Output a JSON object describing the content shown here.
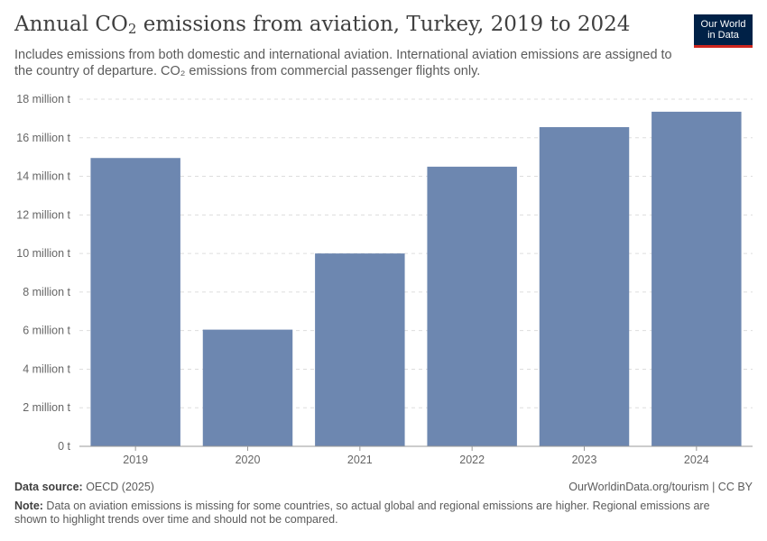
{
  "header": {
    "title_prefix": "Annual CO",
    "title_sub": "2",
    "title_suffix": " emissions from aviation, Turkey, 2019 to 2024",
    "subtitle": "Includes emissions from both domestic and international aviation. International aviation emissions are assigned to the country of departure. CO₂ emissions from commercial passenger flights only."
  },
  "logo": {
    "line1": "Our World",
    "line2": "in Data"
  },
  "chart_data": {
    "type": "bar",
    "title": "Annual CO₂ emissions from aviation, Turkey, 2019 to 2024",
    "xlabel": "",
    "ylabel": "",
    "categories": [
      "2019",
      "2020",
      "2021",
      "2022",
      "2023",
      "2024"
    ],
    "values": [
      14950000,
      6050000,
      10000000,
      14500000,
      16550000,
      17350000
    ],
    "ylim": [
      0,
      18000000
    ],
    "yticks": [
      0,
      2000000,
      4000000,
      6000000,
      8000000,
      10000000,
      12000000,
      14000000,
      16000000,
      18000000
    ],
    "ytick_labels": [
      "0 t",
      "2 million t",
      "4 million t",
      "6 million t",
      "8 million t",
      "10 million t",
      "12 million t",
      "14 million t",
      "16 million t",
      "18 million t"
    ],
    "grid": true,
    "bar_color": "#6d87b0"
  },
  "footer": {
    "source_label": "Data source:",
    "source_value": " OECD (2025)",
    "credit": "OurWorldinData.org/tourism | CC BY",
    "note_label": "Note:",
    "note_value": " Data on aviation emissions is missing for some countries, so actual global and regional emissions are higher. Regional emissions are shown to highlight trends over time and should not be compared."
  }
}
